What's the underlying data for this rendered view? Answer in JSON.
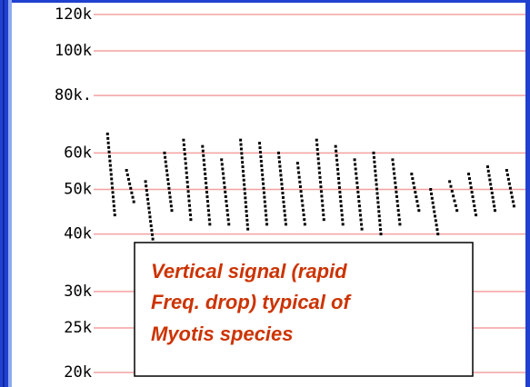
{
  "chart_data": {
    "type": "pulses",
    "ylim": [
      18600,
      129000
    ],
    "log_y": true,
    "grid": true,
    "grid_color": "#f4a0a0",
    "color": "#000000",
    "yticks": [
      {
        "value": 20000,
        "label": "20k"
      },
      {
        "value": 25000,
        "label": "25k"
      },
      {
        "value": 30000,
        "label": "30k"
      },
      {
        "value": 40000,
        "label": "40k"
      },
      {
        "value": 50000,
        "label": "50k"
      },
      {
        "value": 60000,
        "label": "60k"
      },
      {
        "value": 80000,
        "label": "80k."
      },
      {
        "value": 100000,
        "label": "100k"
      },
      {
        "value": 120000,
        "label": "120k"
      }
    ],
    "categories": [
      null,
      null,
      null,
      null,
      null,
      null,
      null,
      null,
      null,
      null,
      null,
      null,
      null,
      null,
      null,
      null,
      null,
      null,
      null,
      null,
      null,
      null
    ],
    "series": [
      {
        "values": [
          66000,
          55000,
          52000,
          60000,
          64000,
          62000,
          58000,
          64000,
          63000,
          60000,
          57000,
          64000,
          62000,
          58000,
          60000,
          58000,
          54000,
          50000,
          52000,
          54000,
          56000,
          55000
        ]
      },
      {
        "values": [
          44000,
          47000,
          39000,
          45000,
          43000,
          42000,
          42000,
          41000,
          42000,
          42000,
          42000,
          43000,
          42000,
          41000,
          40000,
          42000,
          45000,
          40000,
          45000,
          44000,
          45000,
          46000
        ]
      }
    ],
    "annotation": [
      "Vertical signal (rapid",
      "Freq. drop) typical of",
      "Myotis species"
    ]
  }
}
